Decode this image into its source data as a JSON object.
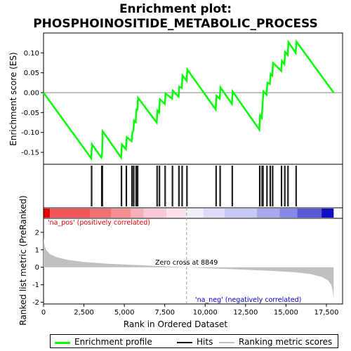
{
  "chart_data": {
    "type": "line",
    "title_line1": "Enrichment plot:",
    "title_line2": "PHOSPHOINOSITIDE_METABOLIC_PROCESS",
    "es_panel": {
      "ylabel": "Enrichment score (ES)",
      "ylim": [
        -0.18,
        0.15
      ],
      "yticks": [
        -0.15,
        -0.1,
        -0.05,
        0.0,
        0.05,
        0.1
      ],
      "ytick_labels": [
        "-0.15",
        "-0.10",
        "-0.05",
        "0.00",
        "0.05",
        "0.10"
      ],
      "color": "#00ff00",
      "points": [
        [
          0,
          0.0
        ],
        [
          2950,
          -0.165
        ],
        [
          3000,
          -0.13
        ],
        [
          3580,
          -0.163
        ],
        [
          3620,
          -0.155
        ],
        [
          3660,
          -0.097
        ],
        [
          4800,
          -0.163
        ],
        [
          4850,
          -0.13
        ],
        [
          5100,
          -0.142
        ],
        [
          5150,
          -0.112
        ],
        [
          5450,
          -0.122
        ],
        [
          5500,
          -0.1
        ],
        [
          5560,
          -0.095
        ],
        [
          5600,
          -0.07
        ],
        [
          5700,
          -0.074
        ],
        [
          5750,
          -0.04
        ],
        [
          5800,
          -0.045
        ],
        [
          5850,
          -0.013
        ],
        [
          7000,
          -0.075
        ],
        [
          7050,
          -0.045
        ],
        [
          7150,
          -0.05
        ],
        [
          7200,
          -0.017
        ],
        [
          7500,
          -0.028
        ],
        [
          7550,
          -0.002
        ],
        [
          7950,
          -0.015
        ],
        [
          8000,
          0.005
        ],
        [
          8350,
          -0.01
        ],
        [
          8400,
          0.015
        ],
        [
          8550,
          0.012
        ],
        [
          8600,
          0.043
        ],
        [
          8850,
          0.03
        ],
        [
          8900,
          0.058
        ],
        [
          10650,
          -0.042
        ],
        [
          10700,
          -0.008
        ],
        [
          10900,
          -0.015
        ],
        [
          10950,
          0.013
        ],
        [
          11650,
          -0.028
        ],
        [
          11700,
          0.003
        ],
        [
          13350,
          -0.093
        ],
        [
          13400,
          -0.057
        ],
        [
          13500,
          -0.063
        ],
        [
          13550,
          -0.03
        ],
        [
          13600,
          0.003
        ],
        [
          13800,
          -0.005
        ],
        [
          13850,
          0.025
        ],
        [
          14000,
          0.022
        ],
        [
          14050,
          0.047
        ],
        [
          14150,
          0.043
        ],
        [
          14200,
          0.075
        ],
        [
          14700,
          0.055
        ],
        [
          14750,
          0.08
        ],
        [
          14900,
          0.072
        ],
        [
          14950,
          0.102
        ],
        [
          15100,
          0.095
        ],
        [
          15150,
          0.127
        ],
        [
          15600,
          0.1
        ],
        [
          15650,
          0.128
        ],
        [
          17950,
          0.0
        ]
      ]
    },
    "hits": [
      2950,
      3000,
      3580,
      3620,
      3660,
      4800,
      4850,
      5100,
      5150,
      5450,
      5500,
      5560,
      5600,
      5700,
      5750,
      5800,
      5850,
      7000,
      7050,
      7150,
      7200,
      7500,
      7550,
      7950,
      8000,
      8350,
      8400,
      8550,
      8600,
      8850,
      8900,
      10650,
      10700,
      10900,
      10950,
      11650,
      11700,
      13350,
      13400,
      13500,
      13550,
      13600,
      13800,
      13850,
      14000,
      14050,
      14150,
      14200,
      14700,
      14750,
      14900,
      14950,
      15100,
      15150,
      15600,
      15650
    ],
    "heat_bar": {
      "segments": [
        {
          "from": 0,
          "to": 400,
          "color": "#e8000a"
        },
        {
          "from": 400,
          "to": 2900,
          "color": "#f25555"
        },
        {
          "from": 2900,
          "to": 4200,
          "color": "#f47070"
        },
        {
          "from": 4200,
          "to": 5400,
          "color": "#f59090"
        },
        {
          "from": 5400,
          "to": 6200,
          "color": "#f8b0b8"
        },
        {
          "from": 6200,
          "to": 7600,
          "color": "#fbc8d8"
        },
        {
          "from": 7600,
          "to": 8800,
          "color": "#fde0ec"
        },
        {
          "from": 8800,
          "to": 9900,
          "color": "#f0eefa"
        },
        {
          "from": 9900,
          "to": 11200,
          "color": "#dcdcf8"
        },
        {
          "from": 11200,
          "to": 13200,
          "color": "#c8c8f4"
        },
        {
          "from": 13200,
          "to": 14600,
          "color": "#a8a8ee"
        },
        {
          "from": 14600,
          "to": 15700,
          "color": "#8888e6"
        },
        {
          "from": 15700,
          "to": 17200,
          "color": "#5a5ad8"
        },
        {
          "from": 17200,
          "to": 17950,
          "color": "#1010c0"
        }
      ]
    },
    "rank_panel": {
      "ylabel": "Ranked list metric (PreRanked)",
      "xlabel": "Rank in Ordered Dataset",
      "ylim": [
        -2.1,
        2.8
      ],
      "yticks": [
        -2,
        -1,
        0,
        1,
        2
      ],
      "ytick_labels": [
        "-2",
        "-1",
        "0",
        "1",
        "2"
      ],
      "pos_label": "'na_pos' (positively correlated)",
      "neg_label": "'na_neg' (negatively correlated)",
      "zero_cross_label": "Zero cross at 8849",
      "zero_cross": 8849,
      "metric_points": [
        [
          0,
          1.65
        ],
        [
          50,
          1.3
        ],
        [
          150,
          1.0
        ],
        [
          400,
          0.75
        ],
        [
          800,
          0.58
        ],
        [
          1500,
          0.42
        ],
        [
          2500,
          0.3
        ],
        [
          4000,
          0.2
        ],
        [
          6000,
          0.12
        ],
        [
          8000,
          0.04
        ],
        [
          8849,
          0.0
        ],
        [
          10000,
          -0.05
        ],
        [
          12000,
          -0.12
        ],
        [
          14000,
          -0.2
        ],
        [
          15500,
          -0.28
        ],
        [
          16500,
          -0.38
        ],
        [
          17200,
          -0.55
        ],
        [
          17600,
          -0.75
        ],
        [
          17800,
          -1.0
        ],
        [
          17900,
          -1.4
        ],
        [
          17950,
          -1.85
        ]
      ]
    },
    "xlim": [
      0,
      18500
    ],
    "xticks": [
      0,
      2500,
      5000,
      7500,
      10000,
      12500,
      15000,
      17500
    ],
    "xtick_labels": [
      "0",
      "2,500",
      "5,000",
      "7,500",
      "10,000",
      "12,500",
      "15,000",
      "17,500"
    ],
    "legend": [
      {
        "label": "Enrichment profile",
        "color": "#00ff00"
      },
      {
        "label": "Hits",
        "color": "#000000"
      },
      {
        "label": "Ranking metric scores",
        "color": "#c0c0c0"
      }
    ]
  }
}
